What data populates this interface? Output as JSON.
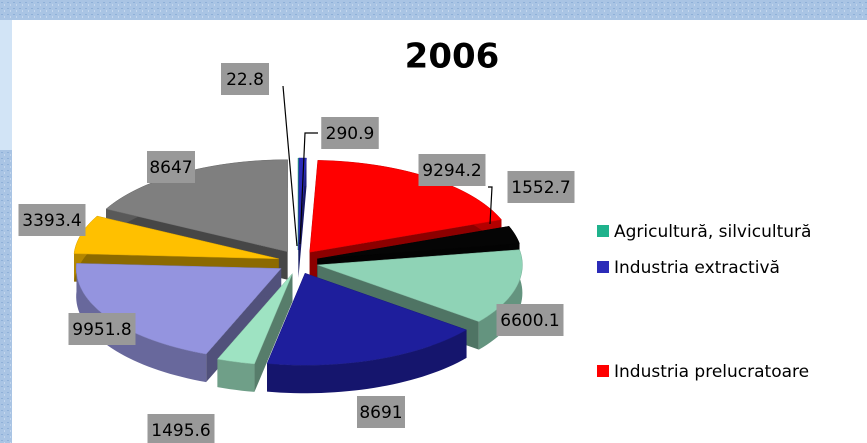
{
  "chart_data": {
    "type": "pie",
    "title": "2006",
    "categories": [
      "Agricultură, silvicultură",
      "Industria extractivă",
      "Industria prelucratoare",
      null,
      null,
      null,
      null,
      null,
      null,
      null
    ],
    "values": [
      22.8,
      290.9,
      9294.2,
      1552.7,
      6600.1,
      8691,
      1495.6,
      9951.8,
      3393.4,
      8647
    ],
    "colors": [
      "#1fb28c",
      "#2b2bb8",
      "#ff0000",
      "#050505",
      "#8fd3b6",
      "#1e1e9c",
      "#9ee3c2",
      "#9494df",
      "#ffc000",
      "#7f7f7f"
    ],
    "legend": "right"
  }
}
